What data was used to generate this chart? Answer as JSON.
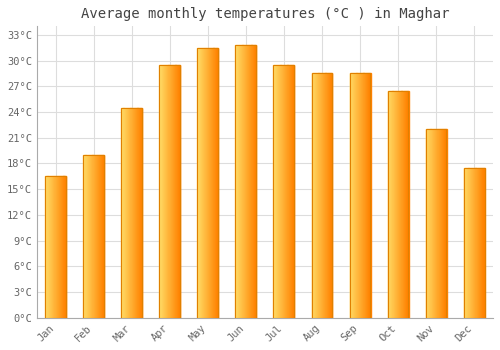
{
  "title": "Average monthly temperatures (°C ) in Maghar",
  "months": [
    "Jan",
    "Feb",
    "Mar",
    "Apr",
    "May",
    "Jun",
    "Jul",
    "Aug",
    "Sep",
    "Oct",
    "Nov",
    "Dec"
  ],
  "values": [
    16.5,
    19.0,
    24.5,
    29.5,
    31.5,
    31.8,
    29.5,
    28.5,
    28.5,
    26.5,
    22.0,
    17.5
  ],
  "bar_color_face": "#FFB800",
  "bar_color_light": "#FFD966",
  "bar_color_edge": "#E08000",
  "background_color": "#FFFFFF",
  "plot_bg_color": "#FFFFFF",
  "grid_color": "#DDDDDD",
  "title_color": "#444444",
  "tick_color": "#666666",
  "ylim": [
    0,
    34
  ],
  "yticks": [
    0,
    3,
    6,
    9,
    12,
    15,
    18,
    21,
    24,
    27,
    30,
    33
  ],
  "ytick_labels": [
    "0°C",
    "3°C",
    "6°C",
    "9°C",
    "12°C",
    "15°C",
    "18°C",
    "21°C",
    "24°C",
    "27°C",
    "30°C",
    "33°C"
  ],
  "title_fontsize": 10,
  "tick_fontsize": 7.5,
  "bar_width": 0.55
}
